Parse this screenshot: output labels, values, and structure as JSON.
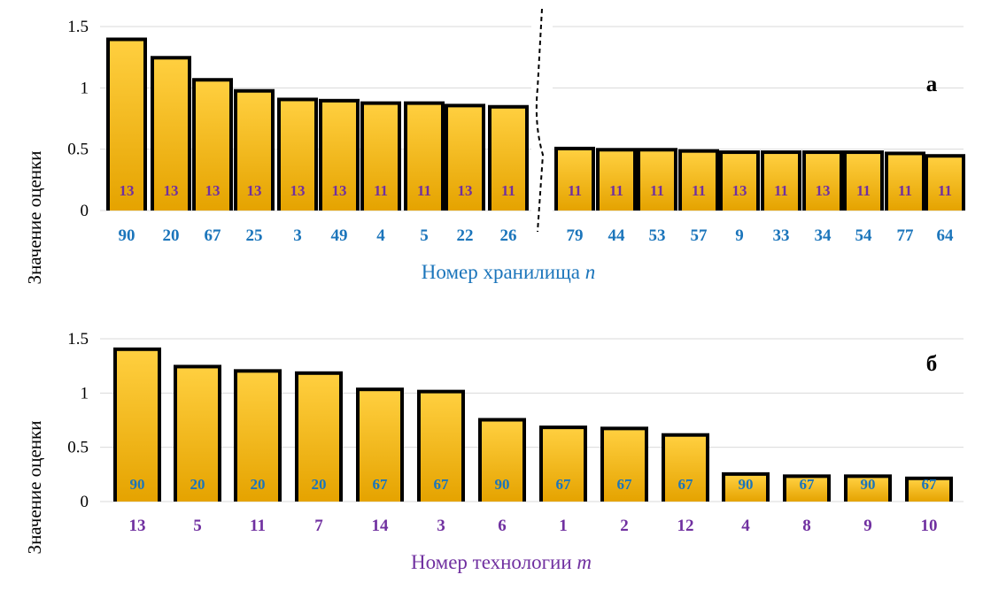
{
  "colors": {
    "bar_fill_top": "#ffcf3f",
    "bar_fill_bottom": "#e5a300",
    "bar_outline": "#000000",
    "blue_text": "#1b75bb",
    "purple_text": "#7030a0",
    "grid": "#d9d9d9"
  },
  "chart_data": [
    {
      "type": "bar",
      "panel_label": "а",
      "ylabel": "Значение оценки",
      "xlabel": "Номер хранилища",
      "xlabel_var": "n",
      "yticks": [
        "0",
        "0.5",
        "1",
        "1.5"
      ],
      "ylim": [
        0,
        1.5
      ],
      "grid": true,
      "axis_break": "between 26 and 79",
      "categories": [
        "90",
        "20",
        "67",
        "25",
        "3",
        "49",
        "4",
        "5",
        "22",
        "26",
        "79",
        "44",
        "53",
        "57",
        "9",
        "33",
        "34",
        "54",
        "77",
        "64"
      ],
      "values": [
        1.41,
        1.26,
        1.08,
        0.99,
        0.92,
        0.91,
        0.89,
        0.89,
        0.87,
        0.86,
        0.52,
        0.51,
        0.51,
        0.5,
        0.49,
        0.49,
        0.49,
        0.49,
        0.48,
        0.46
      ],
      "bar_labels": [
        "13",
        "13",
        "13",
        "13",
        "13",
        "13",
        "11",
        "11",
        "13",
        "11",
        "11",
        "11",
        "11",
        "11",
        "13",
        "11",
        "13",
        "11",
        "11",
        "11"
      ],
      "category_color": "blue",
      "bar_label_color": "purple"
    },
    {
      "type": "bar",
      "panel_label": "б",
      "ylabel": "Значение оценки",
      "xlabel": "Номер технологии",
      "xlabel_var": "m",
      "yticks": [
        "0",
        "0.5",
        "1",
        "1.5"
      ],
      "ylim": [
        0,
        1.5
      ],
      "grid": true,
      "categories": [
        "13",
        "5",
        "11",
        "7",
        "14",
        "3",
        "6",
        "1",
        "2",
        "12",
        "4",
        "8",
        "9",
        "10"
      ],
      "values": [
        1.42,
        1.26,
        1.22,
        1.2,
        1.05,
        1.03,
        0.77,
        0.7,
        0.69,
        0.63,
        0.27,
        0.25,
        0.25,
        0.23
      ],
      "bar_labels": [
        "90",
        "20",
        "20",
        "20",
        "67",
        "67",
        "90",
        "67",
        "67",
        "67",
        "90",
        "67",
        "90",
        "67"
      ],
      "category_color": "purple",
      "bar_label_color": "blue"
    }
  ]
}
